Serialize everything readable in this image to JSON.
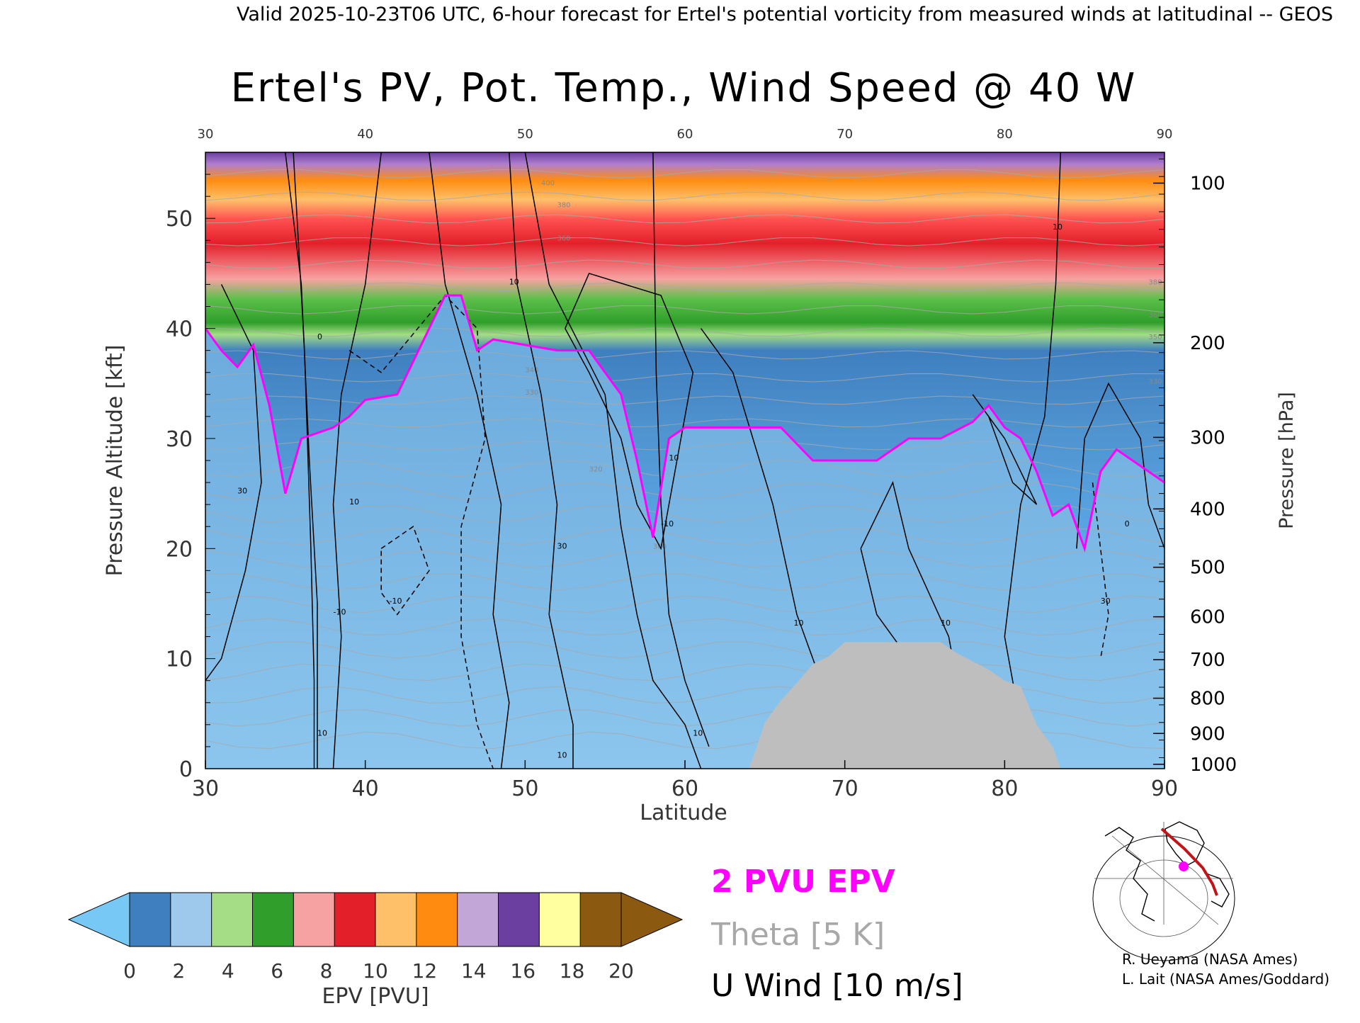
{
  "header": {
    "valid_line": "Valid 2025-10-23T06 UTC, 6-hour forecast for Ertel's potential vorticity from measured winds at latitudinal -- GEOS"
  },
  "chart_data": {
    "type": "heatmap",
    "title": "Ertel's PV, Pot. Temp., Wind Speed @ 40 W",
    "xlabel": "Latitude",
    "ylabel_left": "Pressure Altitude [kft]",
    "ylabel_right": "Pressure [hPa]",
    "xlim": [
      30,
      90
    ],
    "ylim_kft": [
      0,
      56
    ],
    "x_ticks": [
      30,
      40,
      50,
      60,
      70,
      80,
      90
    ],
    "y_ticks_kft": [
      0,
      10,
      20,
      30,
      40,
      50
    ],
    "pressure_ticks": [
      {
        "hPa": "100",
        "kft": 53.2
      },
      {
        "hPa": "200",
        "kft": 38.7
      },
      {
        "hPa": "300",
        "kft": 30.1
      },
      {
        "hPa": "400",
        "kft": 23.6
      },
      {
        "hPa": "500",
        "kft": 18.3
      },
      {
        "hPa": "600",
        "kft": 13.8
      },
      {
        "hPa": "700",
        "kft": 9.9
      },
      {
        "hPa": "800",
        "kft": 6.4
      },
      {
        "hPa": "900",
        "kft": 3.2
      },
      {
        "hPa": "1000",
        "kft": 0.4
      }
    ],
    "tropopause_2pvu_kft": [
      [
        30,
        40
      ],
      [
        31,
        38
      ],
      [
        32,
        36.5
      ],
      [
        33,
        38.5
      ],
      [
        34,
        33
      ],
      [
        35,
        25
      ],
      [
        36,
        30
      ],
      [
        37,
        30.5
      ],
      [
        38,
        31
      ],
      [
        39,
        32
      ],
      [
        40,
        33.5
      ],
      [
        42,
        34
      ],
      [
        44,
        40
      ],
      [
        45,
        43
      ],
      [
        46,
        43
      ],
      [
        47,
        38
      ],
      [
        48,
        39
      ],
      [
        50,
        38.5
      ],
      [
        52,
        38
      ],
      [
        54,
        38
      ],
      [
        56,
        34
      ],
      [
        57,
        28
      ],
      [
        58,
        21
      ],
      [
        59,
        30
      ],
      [
        60,
        31
      ],
      [
        62,
        31
      ],
      [
        64,
        31
      ],
      [
        66,
        31
      ],
      [
        68,
        28
      ],
      [
        70,
        28
      ],
      [
        72,
        28
      ],
      [
        74,
        30
      ],
      [
        76,
        30
      ],
      [
        78,
        31.5
      ],
      [
        79,
        33
      ],
      [
        80,
        31
      ],
      [
        81,
        30
      ],
      [
        82,
        27
      ],
      [
        83,
        23
      ],
      [
        84,
        24
      ],
      [
        85,
        20
      ],
      [
        86,
        27
      ],
      [
        87,
        29
      ],
      [
        88,
        28
      ],
      [
        90,
        26
      ]
    ],
    "terrain_kft": [
      [
        64,
        0
      ],
      [
        64.5,
        2
      ],
      [
        65,
        4.2
      ],
      [
        66,
        6.2
      ],
      [
        67,
        7.8
      ],
      [
        68,
        9.5
      ],
      [
        69,
        10.2
      ],
      [
        70,
        11.5
      ],
      [
        75,
        11.5
      ],
      [
        76,
        11.5
      ],
      [
        77,
        10.5
      ],
      [
        79,
        9
      ],
      [
        80,
        8
      ],
      [
        81,
        7.5
      ],
      [
        82,
        4
      ],
      [
        83,
        2
      ],
      [
        83.5,
        0
      ]
    ],
    "u_wind_contours": {
      "interval_ms": 10,
      "labels": [
        "30",
        "10",
        "0",
        "-10",
        "10",
        "-10",
        "10",
        "10",
        "30",
        "10",
        "-10",
        "10",
        "10",
        "10",
        "30",
        "0",
        "10",
        "-10"
      ]
    },
    "theta_contour_labels": [
      "400",
      "380",
      "360",
      "340",
      "330",
      "320",
      "300",
      "380",
      "360",
      "350",
      "330"
    ],
    "epv_colorbar": {
      "label": "EPV [PVU]",
      "ticks": [
        "0",
        "2",
        "4",
        "6",
        "8",
        "10",
        "12",
        "14",
        "16",
        "18",
        "20"
      ],
      "range": [
        0,
        20
      ],
      "colors": [
        "#3f7fc0",
        "#9fc9ec",
        "#a4dd85",
        "#2f9e2a",
        "#f7a2a2",
        "#e3202a",
        "#ffc06a",
        "#ff8c10",
        "#c2a6d8",
        "#6b3fa0",
        "#ffffa0",
        "#8b5a10"
      ],
      "under_color": "#78c8f5",
      "over_color": "#8b5a10"
    },
    "legend": [
      {
        "label": "2 PVU EPV",
        "color": "#ff00ff"
      },
      {
        "label": "Theta [5 K]",
        "color": "#a8a8a8"
      },
      {
        "label": "U Wind [10 m/s]",
        "color": "#000000"
      }
    ]
  },
  "inset_map": {
    "marker_color": "#ff00ff",
    "track_color": "#c0141a"
  },
  "credits": {
    "line1": "R. Ueyama (NASA Ames)",
    "line2": "L. Lait (NASA Ames/Goddard)"
  },
  "colors": {
    "terrain": "#bebebe",
    "tropopause": "#ff00ff",
    "wind": "#000000",
    "theta": "#a8a8a8"
  }
}
